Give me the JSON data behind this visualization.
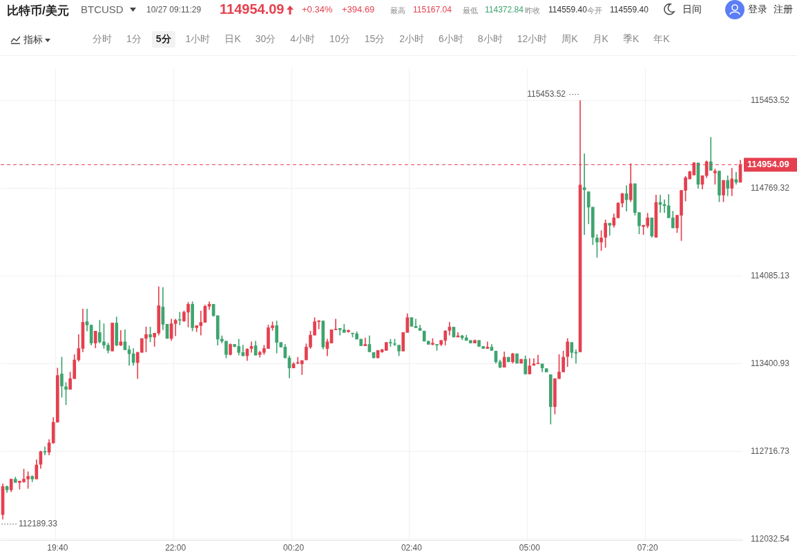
{
  "chart_data": {
    "type": "candlestick",
    "title": "比特币/美元",
    "subtitle": "BTCUSD",
    "categories": [
      null,
      null,
      null,
      null,
      null,
      null,
      null,
      null,
      null,
      null,
      null,
      null,
      null,
      "19:40",
      null,
      null,
      null,
      null,
      null,
      null,
      null,
      null,
      null,
      null,
      null,
      null,
      null,
      null,
      null,
      null,
      null,
      null,
      null,
      null,
      null,
      null,
      null,
      null,
      null,
      null,
      null,
      "22:00",
      null,
      null,
      null,
      null,
      null,
      null,
      null,
      null,
      null,
      null,
      null,
      null,
      null,
      null,
      null,
      null,
      null,
      null,
      null,
      null,
      null,
      null,
      null,
      null,
      null,
      null,
      null,
      "00:20",
      null,
      null,
      null,
      null,
      null,
      null,
      null,
      null,
      null,
      null,
      null,
      null,
      null,
      null,
      null,
      null,
      null,
      null,
      null,
      null,
      null,
      null,
      null,
      null,
      null,
      null,
      null,
      "02:40",
      null,
      null,
      null,
      null,
      null,
      null,
      null,
      null,
      null,
      null,
      null,
      null,
      null,
      null,
      null,
      null,
      null,
      null,
      null,
      null,
      null,
      null,
      null,
      null,
      null,
      null,
      null,
      "05:00",
      null,
      null,
      null,
      null,
      null,
      null,
      null,
      null,
      null,
      null,
      null,
      null,
      null,
      null,
      null,
      null,
      null,
      null,
      null,
      null,
      null,
      null,
      null,
      null,
      null,
      null,
      null,
      "07:20",
      null,
      null,
      null,
      null,
      null,
      null,
      null,
      null,
      null,
      null,
      null,
      null,
      null,
      null,
      null,
      null,
      null,
      null,
      null,
      null,
      null,
      null
    ],
    "ohlc": [
      [
        112226,
        112466,
        112189.33,
        112445
      ],
      [
        112445,
        112450,
        112398,
        112419
      ],
      [
        112419,
        112503,
        112404,
        112503
      ],
      [
        112503,
        112519,
        112477,
        112477
      ],
      [
        112477,
        112488,
        112424,
        112488
      ],
      [
        112482,
        112581,
        112477,
        112503
      ],
      [
        112503,
        112561,
        112429,
        112524
      ],
      [
        112524,
        112529,
        112482,
        112503
      ],
      [
        112503,
        112654,
        112503,
        112613
      ],
      [
        112618,
        112722,
        112586,
        112717
      ],
      [
        112717,
        112754,
        112690,
        112712
      ],
      [
        112712,
        112811,
        112690,
        112785
      ],
      [
        112785,
        112983,
        112780,
        112946
      ],
      [
        112946,
        113369,
        112946,
        113311
      ],
      [
        113322,
        113453,
        113140,
        113228
      ],
      [
        113223,
        113255,
        113083,
        113202
      ],
      [
        113202,
        113337,
        113202,
        113286
      ],
      [
        113286,
        113474,
        113286,
        113432
      ],
      [
        113432,
        113630,
        113421,
        113521
      ],
      [
        113521,
        113829,
        113495,
        113725
      ],
      [
        113730,
        113829,
        113657,
        113704
      ],
      [
        113704,
        113704,
        113547,
        113563
      ],
      [
        113563,
        113657,
        113526,
        113657
      ],
      [
        113646,
        113741,
        113563,
        113573
      ],
      [
        113573,
        113715,
        113521,
        113547
      ],
      [
        113547,
        113563,
        113485,
        113506
      ],
      [
        113501,
        113720,
        113501,
        113720
      ],
      [
        113720,
        113767,
        113542,
        113547
      ],
      [
        113547,
        113662,
        113542,
        113573
      ],
      [
        113573,
        113667,
        113511,
        113511
      ],
      [
        113511,
        113542,
        113390,
        113480
      ],
      [
        113480,
        113521,
        113390,
        113411
      ],
      [
        113411,
        113495,
        113286,
        113490
      ],
      [
        113490,
        113599,
        113490,
        113599
      ],
      [
        113599,
        113689,
        113495,
        113630
      ],
      [
        113630,
        113689,
        113573,
        113610
      ],
      [
        113610,
        113641,
        113537,
        113641
      ],
      [
        113641,
        114002,
        113625,
        113855
      ],
      [
        113845,
        113997,
        113667,
        113710
      ],
      [
        113710,
        113710,
        113599,
        113599
      ],
      [
        113599,
        113751,
        113584,
        113715
      ],
      [
        113715,
        113751,
        113620,
        113741
      ],
      [
        113746,
        113804,
        113704,
        113741
      ],
      [
        113736,
        113814,
        113730,
        113804
      ],
      [
        113804,
        113881,
        113688,
        113866
      ],
      [
        113866,
        113886,
        113657,
        113683
      ],
      [
        113683,
        113699,
        113652,
        113699
      ],
      [
        113699,
        113814,
        113625,
        113725
      ],
      [
        113725,
        113860,
        113725,
        113850
      ],
      [
        113850,
        113886,
        113825,
        113866
      ],
      [
        113866,
        113866,
        113772,
        113777
      ],
      [
        113777,
        113777,
        113547,
        113594
      ],
      [
        113594,
        113620,
        113563,
        113578
      ],
      [
        113578,
        113578,
        113448,
        113474
      ],
      [
        113474,
        113558,
        113469,
        113553
      ],
      [
        113553,
        113553,
        113532,
        113537
      ],
      [
        113537,
        113594,
        113469,
        113490
      ],
      [
        113490,
        113547,
        113464,
        113464
      ],
      [
        113464,
        113521,
        113427,
        113516
      ],
      [
        113521,
        113573,
        113490,
        113537
      ],
      [
        113542,
        113578,
        113469,
        113469
      ],
      [
        113474,
        113501,
        113453,
        113490
      ],
      [
        113490,
        113547,
        113474,
        113521
      ],
      [
        113521,
        113704,
        113521,
        113683
      ],
      [
        113683,
        113730,
        113662,
        113699
      ],
      [
        113699,
        113736,
        113485,
        113568
      ],
      [
        113568,
        113568,
        113532,
        113532
      ],
      [
        113532,
        113553,
        113448,
        113448
      ],
      [
        113448,
        113464,
        113291,
        113369
      ],
      [
        113369,
        113411,
        113369,
        113401
      ],
      [
        113406,
        113453,
        113401,
        113406
      ],
      [
        113401,
        113427,
        113317,
        113427
      ],
      [
        113432,
        113558,
        113432,
        113532
      ],
      [
        113532,
        113657,
        113521,
        113625
      ],
      [
        113625,
        113762,
        113625,
        113730
      ],
      [
        113730,
        113741,
        113673,
        113736
      ],
      [
        113736,
        113736,
        113516,
        113532
      ],
      [
        113521,
        113594,
        113464,
        113573
      ],
      [
        113563,
        113667,
        113563,
        113667
      ],
      [
        113667,
        113751,
        113667,
        113673
      ],
      [
        113678,
        113678,
        113625,
        113667
      ],
      [
        113667,
        113710,
        113646,
        113646
      ],
      [
        113652,
        113667,
        113646,
        113662
      ],
      [
        113641,
        113641,
        113610,
        113636
      ],
      [
        113636,
        113652,
        113594,
        113594
      ],
      [
        113594,
        113594,
        113542,
        113542
      ],
      [
        113542,
        113604,
        113542,
        113553
      ],
      [
        113553,
        113620,
        113495,
        113495
      ],
      [
        113490,
        113490,
        113448,
        113448
      ],
      [
        113448,
        113506,
        113448,
        113506
      ],
      [
        113495,
        113516,
        113490,
        113511
      ],
      [
        113506,
        113568,
        113506,
        113568
      ],
      [
        113568,
        113594,
        113537,
        113563
      ],
      [
        113558,
        113594,
        113542,
        113553
      ],
      [
        113547,
        113547,
        113464,
        113501
      ],
      [
        113501,
        113646,
        113501,
        113646
      ],
      [
        113646,
        113793,
        113646,
        113762
      ],
      [
        113762,
        113762,
        113694,
        113694
      ],
      [
        113694,
        113751,
        113683,
        113683
      ],
      [
        113678,
        113704,
        113662,
        113662
      ],
      [
        113657,
        113657,
        113578,
        113578
      ],
      [
        113578,
        113578,
        113553,
        113553
      ],
      [
        113553,
        113599,
        113547,
        113563
      ],
      [
        113553,
        113553,
        113506,
        113547
      ],
      [
        113553,
        113584,
        113542,
        113584
      ],
      [
        113584,
        113662,
        113547,
        113657
      ],
      [
        113662,
        113725,
        113625,
        113688
      ],
      [
        113688,
        113688,
        113610,
        113610
      ],
      [
        113610,
        113646,
        113610,
        113620
      ],
      [
        113620,
        113625,
        113589,
        113604
      ],
      [
        113604,
        113625,
        113584,
        113584
      ],
      [
        113584,
        113584,
        113563,
        113563
      ],
      [
        113563,
        113589,
        113563,
        113584
      ],
      [
        113584,
        113584,
        113537,
        113537
      ],
      [
        113537,
        113537,
        113521,
        113521
      ],
      [
        113521,
        113573,
        113521,
        113532
      ],
      [
        113532,
        113553,
        113506,
        113506
      ],
      [
        113501,
        113501,
        113406,
        113417
      ],
      [
        113417,
        113432,
        113369,
        113375
      ],
      [
        113375,
        113495,
        113375,
        113453
      ],
      [
        113453,
        113453,
        113417,
        113417
      ],
      [
        113417,
        113485,
        113406,
        113480
      ],
      [
        113480,
        113480,
        113406,
        113406
      ],
      [
        113406,
        113437,
        113406,
        113437
      ],
      [
        113437,
        113464,
        113322,
        113322
      ],
      [
        113322,
        113443,
        113322,
        113385
      ],
      [
        113390,
        113443,
        113390,
        113401
      ],
      [
        113401,
        113469,
        113401,
        113406
      ],
      [
        113401,
        113401,
        113338,
        113369
      ],
      [
        113364,
        113364,
        113338,
        113338
      ],
      [
        113317,
        113317,
        112931,
        113067
      ],
      [
        113067,
        113286,
        113010,
        113286
      ],
      [
        113286,
        113474,
        113286,
        113338
      ],
      [
        113338,
        113501,
        113338,
        113453
      ],
      [
        113458,
        113599,
        113380,
        113573
      ],
      [
        113568,
        113568,
        113448,
        113490
      ],
      [
        113490,
        113511,
        113406,
        113485
      ],
      [
        113495,
        115453.52,
        113495,
        114796
      ],
      [
        114775,
        115039,
        114409,
        114759
      ],
      [
        114743,
        114743,
        114493,
        114623
      ],
      [
        114623,
        114623,
        114330,
        114388
      ],
      [
        114383,
        114409,
        114231,
        114351
      ],
      [
        114351,
        114440,
        114284,
        114383
      ],
      [
        114388,
        114524,
        114309,
        114498
      ],
      [
        114498,
        114498,
        114403,
        114482
      ],
      [
        114482,
        114571,
        114466,
        114540
      ],
      [
        114540,
        114660,
        114540,
        114655
      ],
      [
        114655,
        114733,
        114623,
        114728
      ],
      [
        114728,
        114791,
        114592,
        114681
      ],
      [
        114681,
        114963,
        114665,
        114806
      ],
      [
        114806,
        114806,
        114560,
        114581
      ],
      [
        114581,
        114581,
        114414,
        114477
      ],
      [
        114472,
        114482,
        114409,
        114482
      ],
      [
        114477,
        114576,
        114461,
        114540
      ],
      [
        114540,
        114540,
        114388,
        114398
      ],
      [
        114388,
        114717,
        114388,
        114660
      ],
      [
        114660,
        114717,
        114581,
        114644
      ],
      [
        114644,
        114681,
        114581,
        114634
      ],
      [
        114634,
        114722,
        114540,
        114540
      ],
      [
        114540,
        114592,
        114461,
        114461
      ],
      [
        114461,
        114560,
        114425,
        114560
      ],
      [
        114560,
        114754,
        114362,
        114754
      ],
      [
        114754,
        114864,
        114670,
        114853
      ],
      [
        114843,
        114905,
        114843,
        114900
      ],
      [
        114874,
        114973,
        114874,
        114968
      ],
      [
        114968,
        114968,
        114770,
        114801
      ],
      [
        114801,
        114869,
        114764,
        114869
      ],
      [
        114869,
        114984,
        114853,
        114978
      ],
      [
        114978,
        115167.04,
        114910,
        114910
      ],
      [
        114889,
        114921,
        114801,
        114905
      ],
      [
        114905,
        114905,
        114665,
        114717
      ],
      [
        114717,
        114832,
        114665,
        114832
      ],
      [
        114832,
        114869,
        114712,
        114770
      ],
      [
        114770,
        114926,
        114712,
        114843
      ],
      [
        114838,
        114895,
        114801,
        114817
      ],
      [
        114817,
        114989,
        114817,
        114954.09
      ]
    ],
    "colors": [
      "#e5404f",
      "#3fa46f",
      "#e5404f",
      "#3fa46f",
      "#e5404f",
      "#e5404f",
      "#e5404f",
      "#3fa46f",
      "#e5404f",
      "#e5404f",
      "#3fa46f",
      "#e5404f",
      "#e5404f",
      "#e5404f",
      "#3fa46f",
      "#3fa46f",
      "#e5404f",
      "#e5404f",
      "#e5404f",
      "#e5404f",
      "#3fa46f",
      "#3fa46f",
      "#e5404f",
      "#3fa46f",
      "#3fa46f",
      "#3fa46f",
      "#e5404f",
      "#3fa46f",
      "#e5404f",
      "#3fa46f",
      "#3fa46f",
      "#3fa46f",
      "#e5404f",
      "#e5404f",
      "#e5404f",
      "#3fa46f",
      "#e5404f",
      "#e5404f",
      "#3fa46f",
      "#3fa46f",
      "#e5404f",
      "#e5404f",
      "#3fa46f",
      "#e5404f",
      "#e5404f",
      "#3fa46f",
      "#e5404f",
      "#e5404f",
      "#e5404f",
      "#e5404f",
      "#3fa46f",
      "#3fa46f",
      "#3fa46f",
      "#3fa46f",
      "#e5404f",
      "#3fa46f",
      "#3fa46f",
      "#3fa46f",
      "#e5404f",
      "#e5404f",
      "#3fa46f",
      "#e5404f",
      "#e5404f",
      "#e5404f",
      "#e5404f",
      "#3fa46f",
      "#3fa46f",
      "#3fa46f",
      "#3fa46f",
      "#e5404f",
      "#e5404f",
      "#e5404f",
      "#e5404f",
      "#e5404f",
      "#e5404f",
      "#e5404f",
      "#3fa46f",
      "#e5404f",
      "#e5404f",
      "#e5404f",
      "#3fa46f",
      "#3fa46f",
      "#e5404f",
      "#3fa46f",
      "#3fa46f",
      "#3fa46f",
      "#e5404f",
      "#3fa46f",
      "#3fa46f",
      "#e5404f",
      "#e5404f",
      "#e5404f",
      "#3fa46f",
      "#3fa46f",
      "#3fa46f",
      "#e5404f",
      "#e5404f",
      "#3fa46f",
      "#3fa46f",
      "#3fa46f",
      "#3fa46f",
      "#3fa46f",
      "#e5404f",
      "#3fa46f",
      "#e5404f",
      "#e5404f",
      "#e5404f",
      "#3fa46f",
      "#e5404f",
      "#3fa46f",
      "#3fa46f",
      "#3fa46f",
      "#e5404f",
      "#3fa46f",
      "#3fa46f",
      "#e5404f",
      "#3fa46f",
      "#3fa46f",
      "#3fa46f",
      "#e5404f",
      "#3fa46f",
      "#e5404f",
      "#3fa46f",
      "#e5404f",
      "#3fa46f",
      "#e5404f",
      "#e5404f",
      "#e5404f",
      "#3fa46f",
      "#3fa46f",
      "#3fa46f",
      "#e5404f",
      "#e5404f",
      "#e5404f",
      "#e5404f",
      "#3fa46f",
      "#3fa46f",
      "#e5404f",
      "#3fa46f",
      "#3fa46f",
      "#3fa46f",
      "#3fa46f",
      "#e5404f",
      "#e5404f",
      "#3fa46f",
      "#e5404f",
      "#e5404f",
      "#e5404f",
      "#3fa46f",
      "#e5404f",
      "#3fa46f",
      "#3fa46f",
      "#e5404f",
      "#e5404f",
      "#3fa46f",
      "#e5404f",
      "#3fa46f",
      "#3fa46f",
      "#3fa46f",
      "#3fa46f",
      "#e5404f",
      "#e5404f",
      "#e5404f",
      "#e5404f",
      "#e5404f",
      "#3fa46f",
      "#e5404f",
      "#e5404f",
      "#3fa46f",
      "#e5404f",
      "#3fa46f",
      "#e5404f",
      "#3fa46f",
      "#e5404f",
      "#3fa46f",
      "#e5404f"
    ],
    "ylim": [
      112022,
      115704
    ],
    "yticks": [
      112032.54,
      112716.73,
      113400.93,
      114085.13,
      114769.32,
      115453.52
    ],
    "grid": true,
    "ref_lines": [
      {
        "axis": "y",
        "value": 114954.09,
        "label": "114954.09",
        "color": "#e5404f",
        "line_style": "dashed"
      }
    ],
    "annotations": [
      "10/27 09:11:29",
      "114954.09",
      "+0.34%",
      "+394.69",
      "最高",
      "115167.04",
      "最低",
      "114372.84",
      "昨收",
      "114559.40",
      "今开",
      "114559.40",
      "日间",
      "登录",
      "注册",
      "指标",
      "分时",
      "1分",
      "5分",
      "1小时",
      "日K",
      "30分",
      "4小时",
      "10分",
      "15分",
      "2小时",
      "6小时",
      "8小时",
      "12小时",
      "周K",
      "月K",
      "季K",
      "年K",
      "115453.52",
      "112189.33"
    ]
  }
}
